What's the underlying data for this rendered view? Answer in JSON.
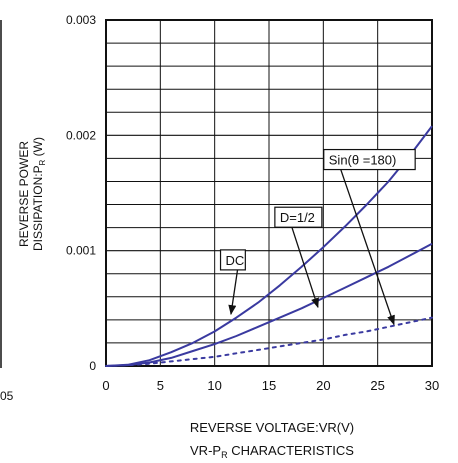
{
  "chart_data": {
    "type": "line",
    "title": "",
    "xlabel": "REVERSE VOLTAGE:VR(V)",
    "ylabel_line1": "REVERSE POWER",
    "ylabel_line2_main": "DISSIPATION:P",
    "ylabel_line2_sub": "R",
    "ylabel_line2_unit": " (W)",
    "caption_main": "VR-P",
    "caption_sub": "R",
    "caption_rest": " CHARACTERISTICS",
    "xlim": [
      0,
      30
    ],
    "ylim": [
      0,
      0.003
    ],
    "x_ticks": [
      0,
      5,
      10,
      15,
      20,
      25,
      30
    ],
    "x_tick_labels": [
      "0",
      "5",
      "10",
      "15",
      "20",
      "25",
      "30"
    ],
    "y_ticks": [
      0,
      0.001,
      0.002,
      0.003
    ],
    "y_tick_labels": [
      "0",
      "0.001",
      "0.002",
      "0.003"
    ],
    "grid": true,
    "left_edge_fragment": "05",
    "series": [
      {
        "name": "Sin(θ=180)",
        "color": "#3a3aa0",
        "style": "dotted",
        "x": [
          0,
          2,
          4,
          6,
          8,
          10,
          12,
          14,
          16,
          18,
          20,
          22,
          24,
          26,
          28,
          30
        ],
        "y": [
          0,
          7e-06,
          2e-05,
          4e-05,
          6e-05,
          8e-05,
          0.00011,
          0.00014,
          0.00017,
          0.0002,
          0.00023,
          0.00027,
          0.0003,
          0.00034,
          0.00038,
          0.00042
        ]
      },
      {
        "name": "D=1/2",
        "color": "#3a3aa0",
        "style": "solid",
        "x": [
          0,
          2,
          4,
          6,
          8,
          10,
          12,
          14,
          16,
          18,
          20,
          22,
          24,
          26,
          28,
          30
        ],
        "y": [
          0,
          8e-06,
          3e-05,
          7e-05,
          0.00013,
          0.00019,
          0.00026,
          0.00034,
          0.00042,
          0.0005,
          0.00059,
          0.00068,
          0.00077,
          0.00086,
          0.00096,
          0.00106
        ]
      },
      {
        "name": "DC",
        "color": "#3a3aa0",
        "style": "solid",
        "x": [
          0,
          2,
          4,
          6,
          8,
          10,
          12,
          14,
          16,
          18,
          20,
          22,
          24,
          26,
          28,
          30
        ],
        "y": [
          0,
          1e-05,
          5e-05,
          0.00012,
          0.0002,
          0.0003,
          0.00042,
          0.00055,
          0.0007,
          0.00086,
          0.00103,
          0.00121,
          0.0014,
          0.0016,
          0.00183,
          0.00208
        ]
      }
    ],
    "annotations": [
      {
        "text": "Sin(θ =180)",
        "box_at": [
          20.5,
          0.00179
        ],
        "arrow_to": [
          26.5,
          0.00036
        ]
      },
      {
        "text": "D=1/2",
        "box_at": [
          16,
          0.00129
        ],
        "arrow_to": [
          19.5,
          0.00051
        ]
      },
      {
        "text": "DC",
        "box_at": [
          11,
          0.00092
        ],
        "arrow_to": [
          11.5,
          0.00045
        ]
      }
    ]
  }
}
